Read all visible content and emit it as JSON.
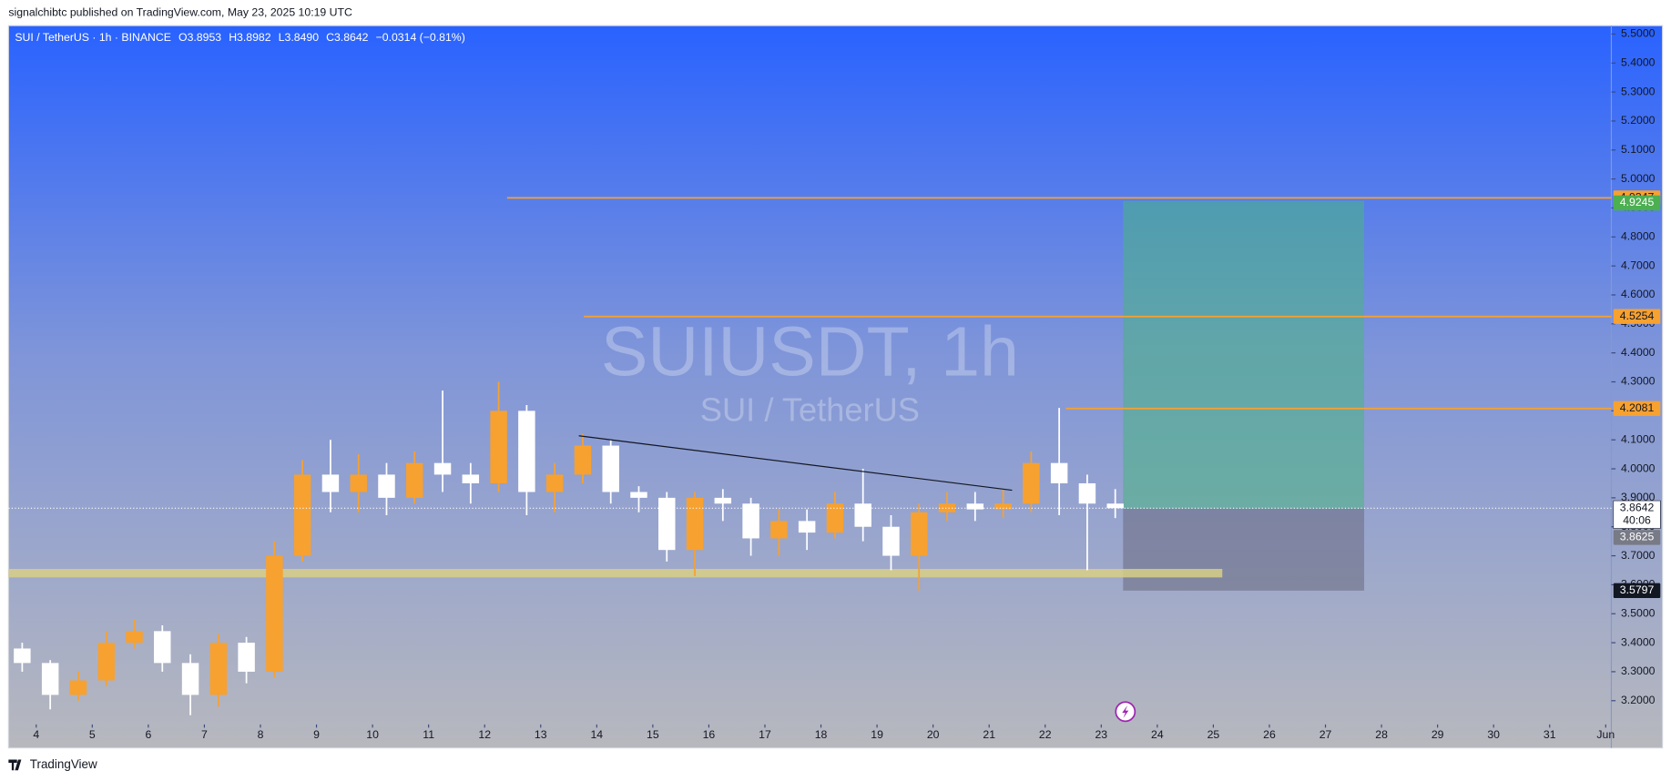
{
  "header": "signalchibtc published on TradingView.com, May 23, 2025 10:19 UTC",
  "footer": "TradingView",
  "chart_data": {
    "type": "candlestick",
    "symbol": "SUI / TetherUS · 1h · BINANCE",
    "legend": [
      {
        "label": "O",
        "value": "3.8953"
      },
      {
        "label": "H",
        "value": "3.8982"
      },
      {
        "label": "L",
        "value": "3.8490"
      },
      {
        "label": "C",
        "value": "3.8642"
      }
    ],
    "change": "−0.0314 (−0.81%)",
    "watermark": "SUIUSDT, 1h",
    "watermark_sub": "SUI / TetherUS",
    "up_color": "#f7a130",
    "down_color": "#ffffff",
    "xlim": [
      3.506,
      32.1
    ],
    "ylim": [
      3.118,
      5.529
    ],
    "xticks": [
      4,
      5,
      6,
      7,
      8,
      9,
      10,
      11,
      12,
      13,
      14,
      15,
      16,
      17,
      18,
      19,
      20,
      21,
      22,
      23,
      24,
      25,
      26,
      27,
      28,
      29,
      30,
      31,
      {
        "value": 32,
        "label": "Jun"
      }
    ],
    "yticks": [
      {
        "value": 3.2,
        "label": "3.2000"
      },
      {
        "value": 3.3,
        "label": "3.3000"
      },
      {
        "value": 3.4,
        "label": "3.4000"
      },
      {
        "value": 3.5,
        "label": "3.5000"
      },
      {
        "value": 3.6,
        "label": "3.6000"
      },
      {
        "value": 3.7,
        "label": "3.7000"
      },
      {
        "value": 3.8,
        "label": "3.8000"
      },
      {
        "value": 3.9,
        "label": "3.9000"
      },
      {
        "value": 4.0,
        "label": "4.0000"
      },
      {
        "value": 4.1,
        "label": "4.1000"
      },
      {
        "value": 4.2,
        "label": "4.2000"
      },
      {
        "value": 4.3,
        "label": "4.3000"
      },
      {
        "value": 4.4,
        "label": "4.4000"
      },
      {
        "value": 4.5,
        "label": "4.5000"
      },
      {
        "value": 4.6,
        "label": "4.6000"
      },
      {
        "value": 4.7,
        "label": "4.7000"
      },
      {
        "value": 4.8,
        "label": "4.8000"
      },
      {
        "value": 4.9,
        "label": "4.9000"
      },
      {
        "value": 5.0,
        "label": "5.0000"
      },
      {
        "value": 5.1,
        "label": "5.1000"
      },
      {
        "value": 5.2,
        "label": "5.2000"
      },
      {
        "value": 5.3,
        "label": "5.3000"
      },
      {
        "value": 5.4,
        "label": "5.4000"
      },
      {
        "value": 5.5,
        "label": "5.5000"
      }
    ],
    "candles": {
      "x": [
        3.75,
        4.25,
        4.75,
        5.25,
        5.75,
        6.25,
        6.75,
        7.25,
        7.75,
        8.25,
        8.75,
        9.25,
        9.75,
        10.25,
        10.75,
        11.25,
        11.75,
        12.25,
        12.75,
        13.25,
        13.75,
        14.25,
        14.75,
        15.25,
        15.75,
        16.25,
        16.75,
        17.25,
        17.75,
        18.25,
        18.75,
        19.25,
        19.75,
        20.25,
        20.75,
        21.25,
        21.75,
        22.25,
        22.75,
        23.25
      ],
      "open": [
        3.38,
        3.33,
        3.22,
        3.27,
        3.4,
        3.44,
        3.33,
        3.22,
        3.4,
        3.3,
        3.7,
        3.98,
        3.92,
        3.98,
        3.9,
        4.02,
        3.98,
        3.95,
        4.2,
        3.92,
        3.98,
        4.08,
        3.92,
        3.9,
        3.72,
        3.9,
        3.88,
        3.76,
        3.82,
        3.78,
        3.88,
        3.8,
        3.7,
        3.85,
        3.88,
        3.86,
        3.88,
        4.02,
        3.95,
        3.88
      ],
      "high": [
        3.4,
        3.34,
        3.3,
        3.44,
        3.48,
        3.46,
        3.36,
        3.43,
        3.42,
        3.75,
        4.03,
        4.1,
        4.05,
        4.02,
        4.06,
        4.27,
        4.02,
        4.3,
        4.22,
        4.02,
        4.12,
        4.1,
        3.94,
        3.92,
        3.92,
        3.93,
        3.9,
        3.86,
        3.86,
        3.92,
        4.0,
        3.84,
        3.88,
        3.92,
        3.92,
        3.93,
        4.06,
        4.21,
        3.98,
        3.93
      ],
      "low": [
        3.3,
        3.17,
        3.2,
        3.25,
        3.38,
        3.3,
        3.15,
        3.18,
        3.26,
        3.28,
        3.68,
        3.85,
        3.85,
        3.84,
        3.88,
        3.92,
        3.88,
        3.92,
        3.84,
        3.85,
        3.95,
        3.88,
        3.85,
        3.68,
        3.63,
        3.82,
        3.7,
        3.7,
        3.72,
        3.76,
        3.75,
        3.65,
        3.58,
        3.82,
        3.82,
        3.83,
        3.85,
        3.84,
        3.65,
        3.83
      ],
      "close": [
        3.33,
        3.22,
        3.27,
        3.4,
        3.44,
        3.33,
        3.22,
        3.4,
        3.3,
        3.7,
        3.98,
        3.92,
        3.98,
        3.9,
        4.02,
        3.98,
        3.95,
        4.2,
        3.92,
        3.98,
        4.08,
        3.92,
        3.9,
        3.72,
        3.9,
        3.88,
        3.76,
        3.82,
        3.78,
        3.88,
        3.8,
        3.7,
        3.85,
        3.88,
        3.86,
        3.88,
        4.02,
        3.95,
        3.88,
        3.8642
      ]
    },
    "levels": [
      {
        "price": 4.9347,
        "x_start": 12.4,
        "color": "#f7a130"
      },
      {
        "price": 4.5254,
        "x_start": 13.77,
        "color": "#f7a130"
      },
      {
        "price": 4.2081,
        "x_start": 22.37,
        "color": "#f7a130"
      }
    ],
    "support_band": {
      "price": 3.64,
      "x_end": 25.16,
      "color": "#d8cf86"
    },
    "trendline": {
      "x": [
        13.68,
        21.41
      ],
      "y": [
        4.114,
        3.926
      ],
      "color": "#131722"
    },
    "position": {
      "x_start": 23.39,
      "x_end": 27.69,
      "target": 4.9245,
      "entry": 3.8625,
      "stop": 3.5797,
      "target_color": "#4caf50",
      "entry_color": "#787b86",
      "stop_color": "#131722"
    },
    "last_price": 3.8642,
    "countdown": "40:06"
  }
}
